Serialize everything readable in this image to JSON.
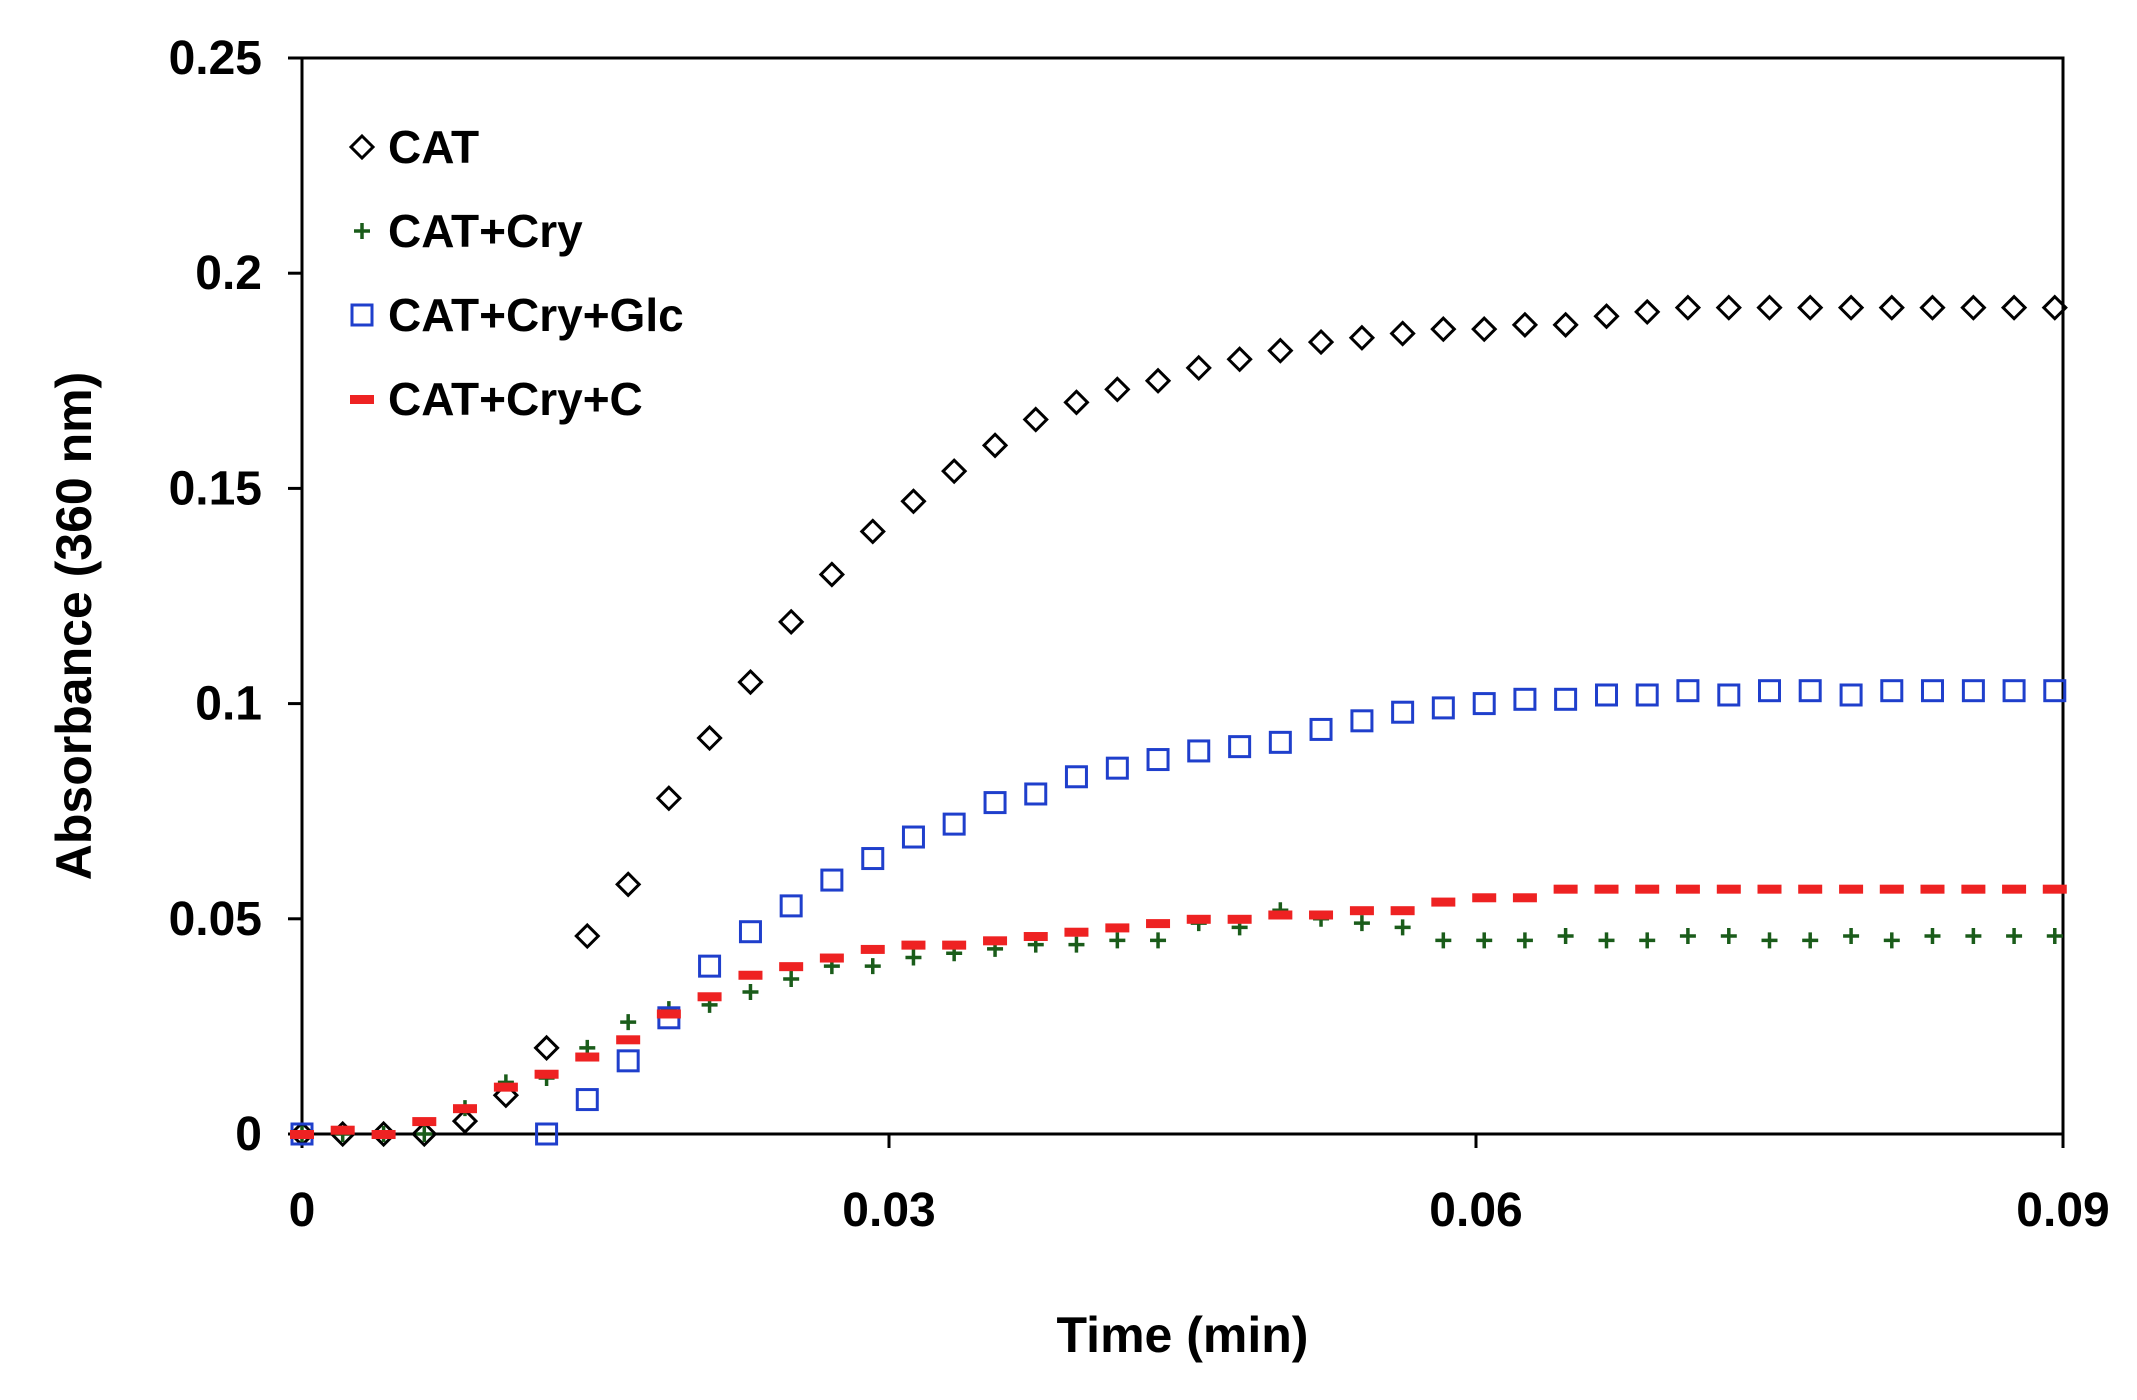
{
  "chart_data": {
    "type": "scatter",
    "title": "",
    "xlabel": "Time (min)",
    "ylabel": "Absorbance (360 nm)",
    "xlim": [
      0,
      0.09
    ],
    "ylim": [
      0,
      0.25
    ],
    "x_ticks": [
      "0",
      "0.03",
      "0.06",
      "0.09"
    ],
    "y_ticks": [
      "0",
      "0.05",
      "0.1",
      "0.15",
      "0.2",
      "0.25"
    ],
    "x_tick_values": [
      0,
      0.03,
      0.06,
      0.09
    ],
    "y_tick_values": [
      0,
      0.05,
      0.1,
      0.15,
      0.2,
      0.25
    ],
    "grid": false,
    "legend_position": "top-left",
    "x": [
      0,
      0.00208,
      0.00417,
      0.00625,
      0.00833,
      0.01042,
      0.0125,
      0.01458,
      0.01667,
      0.01875,
      0.02083,
      0.02292,
      0.025,
      0.02708,
      0.02917,
      0.03125,
      0.03333,
      0.03542,
      0.0375,
      0.03958,
      0.04167,
      0.04375,
      0.04583,
      0.04792,
      0.05,
      0.05208,
      0.05417,
      0.05625,
      0.05833,
      0.06042,
      0.0625,
      0.06458,
      0.06667,
      0.06875,
      0.07083,
      0.07292,
      0.075,
      0.07708,
      0.07917,
      0.08125,
      0.08333,
      0.08542,
      0.0875,
      0.08958
    ],
    "series": [
      {
        "name": "CAT",
        "marker": "diamond",
        "color": "#000000",
        "values": [
          0,
          0,
          0,
          0,
          0.003,
          0.009,
          0.02,
          0.046,
          0.058,
          0.078,
          0.092,
          0.105,
          0.119,
          0.13,
          0.14,
          0.147,
          0.154,
          0.16,
          0.166,
          0.17,
          0.173,
          0.175,
          0.178,
          0.18,
          0.182,
          0.184,
          0.185,
          0.186,
          0.187,
          0.187,
          0.188,
          0.188,
          0.19,
          0.191,
          0.192,
          0.192,
          0.192,
          0.192,
          0.192,
          0.192,
          0.192,
          0.192,
          0.192,
          0.192
        ]
      },
      {
        "name": "CAT+Cry",
        "marker": "plus",
        "color": "#1a5c1a",
        "values": [
          0,
          0,
          0,
          0,
          0.006,
          0.012,
          0.013,
          0.02,
          0.026,
          0.029,
          0.03,
          0.033,
          0.036,
          0.039,
          0.039,
          0.041,
          0.042,
          0.043,
          0.044,
          0.044,
          0.045,
          0.045,
          0.049,
          0.048,
          0.052,
          0.05,
          0.049,
          0.048,
          0.045,
          0.045,
          0.045,
          0.046,
          0.045,
          0.045,
          0.046,
          0.046,
          0.045,
          0.045,
          0.046,
          0.045,
          0.046,
          0.046,
          0.046,
          0.046
        ]
      },
      {
        "name": "CAT+Cry+Glc",
        "marker": "square",
        "color": "#1f3fcc",
        "values": [
          0,
          null,
          null,
          null,
          null,
          null,
          0,
          0.008,
          0.017,
          0.027,
          0.039,
          0.047,
          0.053,
          0.059,
          0.064,
          0.069,
          0.072,
          0.077,
          0.079,
          0.083,
          0.085,
          0.087,
          0.089,
          0.09,
          0.091,
          0.094,
          0.096,
          0.098,
          0.099,
          0.1,
          0.101,
          0.101,
          0.102,
          0.102,
          0.103,
          0.102,
          0.103,
          0.103,
          0.102,
          0.103,
          0.103,
          0.103,
          0.103,
          0.103
        ]
      },
      {
        "name": "CAT+Cry+C",
        "marker": "dash",
        "color": "#ee2222",
        "values": [
          0,
          0.001,
          0,
          0.003,
          0.006,
          0.011,
          0.014,
          0.018,
          0.022,
          0.028,
          0.032,
          0.037,
          0.039,
          0.041,
          0.043,
          0.044,
          0.044,
          0.045,
          0.046,
          0.047,
          0.048,
          0.049,
          0.05,
          0.05,
          0.051,
          0.051,
          0.052,
          0.052,
          0.054,
          0.055,
          0.055,
          0.057,
          0.057,
          0.057,
          0.057,
          0.057,
          0.057,
          0.057,
          0.057,
          0.057,
          0.057,
          0.057,
          0.057,
          0.057
        ]
      }
    ]
  }
}
